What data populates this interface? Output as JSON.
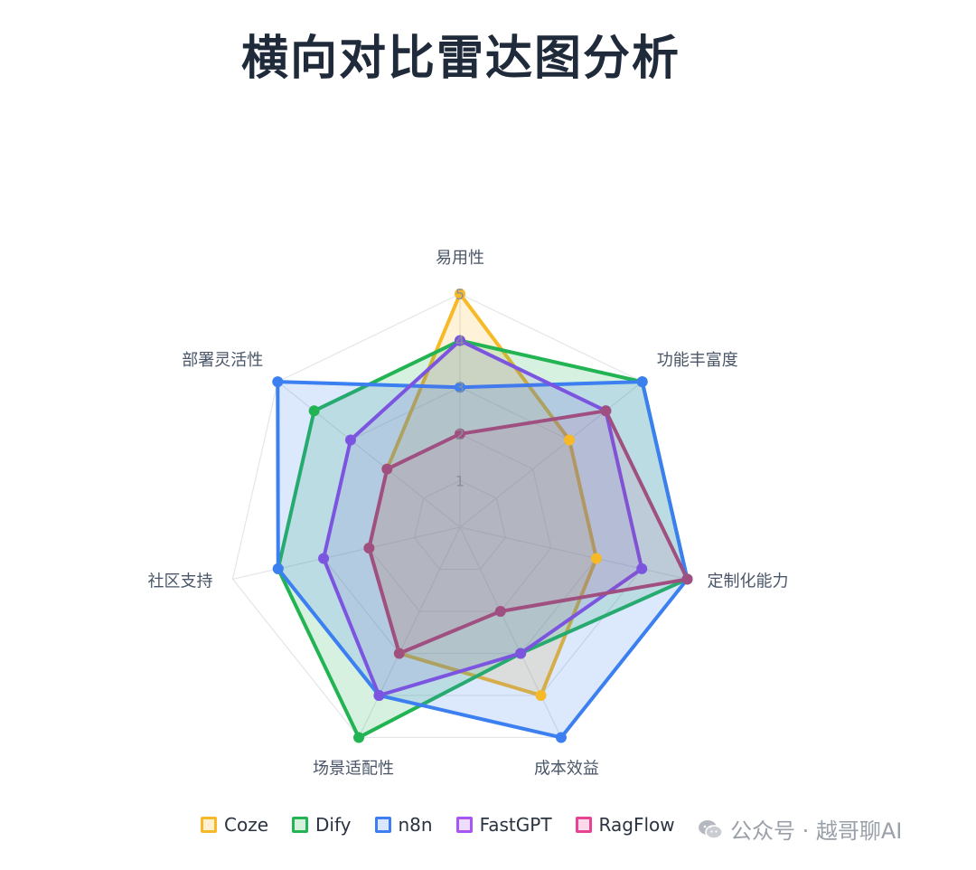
{
  "chart_data": {
    "type": "radar",
    "title": "横向对比雷达图分析",
    "axes": [
      "易用性",
      "功能丰富度",
      "定制化能力",
      "成本效益",
      "场景适配性",
      "社区支持",
      "部署灵活性"
    ],
    "tick_labels": [
      "1",
      "2",
      "3",
      "4",
      "5"
    ],
    "range": [
      0,
      5
    ],
    "series": [
      {
        "name": "Coze",
        "values": [
          5,
          3,
          3,
          4,
          3,
          2,
          2
        ],
        "color": "#f7b928",
        "fill": "rgba(247,185,40,0.18)"
      },
      {
        "name": "Dify",
        "values": [
          4,
          5,
          5,
          3,
          5,
          4,
          4
        ],
        "color": "#22b453",
        "fill": "rgba(34,180,83,0.18)"
      },
      {
        "name": "n8n",
        "values": [
          3,
          5,
          5,
          5,
          4,
          4,
          5
        ],
        "color": "#3b7ff0",
        "fill": "rgba(59,127,240,0.18)"
      },
      {
        "name": "FastGPT",
        "values": [
          4,
          4,
          4,
          3,
          4,
          3,
          3
        ],
        "color": "#7b55e0",
        "fill": "rgba(123,85,224,0.12)"
      },
      {
        "name": "RagFlow",
        "values": [
          2,
          4,
          5,
          2,
          3,
          2,
          2
        ],
        "color": "#a05080",
        "fill": "rgba(200,60,120,0.10)"
      }
    ],
    "legend_swatch_borders": [
      "#f7b928",
      "#22b453",
      "#3b7ff0",
      "#a855f7",
      "#e84393"
    ],
    "legend_swatch_fills": [
      "#fdf1d2",
      "#d3f1dc",
      "#d9e6fc",
      "#eddcfd",
      "#fbd9e8"
    ]
  },
  "watermark": {
    "text": "公众号 · 越哥聊AI"
  }
}
